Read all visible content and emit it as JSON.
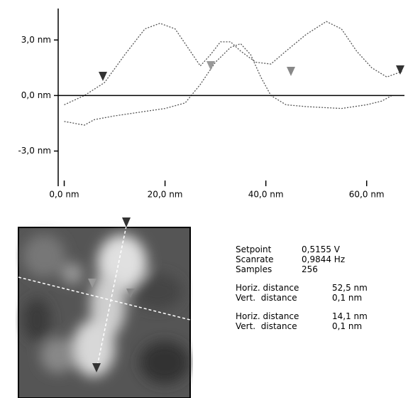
{
  "chart_data": {
    "type": "line",
    "xlim": [
      -1.2,
      67.5
    ],
    "ylim": [
      -4.9,
      4.7
    ],
    "xticks": [
      {
        "value": 0,
        "label": "0,0 nm"
      },
      {
        "value": 20,
        "label": "20,0 nm"
      },
      {
        "value": 40,
        "label": "40,0 nm"
      },
      {
        "value": 60,
        "label": "60,0 nm"
      }
    ],
    "yticks": [
      {
        "value": -3,
        "label": "-3,0 nm"
      },
      {
        "value": 0,
        "label": "0,0 nm"
      },
      {
        "value": 3,
        "label": "3,0 nm"
      }
    ],
    "series": [
      {
        "color": "#555555",
        "x": [
          0,
          4,
          8,
          12,
          16,
          19,
          22,
          25,
          27,
          29,
          31,
          33,
          35,
          38,
          41,
          44,
          48,
          52,
          55,
          58,
          61,
          64,
          67
        ],
        "values": [
          -0.5,
          0,
          0.7,
          2.2,
          3.6,
          3.9,
          3.6,
          2.4,
          1.6,
          2.2,
          2.9,
          2.9,
          2.4,
          1.8,
          1.7,
          2.4,
          3.3,
          4.0,
          3.6,
          2.4,
          1.5,
          1.0,
          1.3
        ]
      },
      {
        "color": "#555555",
        "x": [
          0,
          4,
          6,
          10,
          15,
          20,
          24,
          27,
          30,
          33,
          35,
          37,
          39,
          41,
          44,
          48,
          55,
          60,
          63,
          65
        ],
        "values": [
          -1.4,
          -1.6,
          -1.3,
          -1.1,
          -0.9,
          -0.7,
          -0.4,
          0.6,
          1.8,
          2.6,
          2.8,
          2.2,
          1.0,
          0,
          -0.5,
          -0.6,
          -0.7,
          -0.5,
          -0.3,
          0
        ]
      }
    ]
  },
  "info": {
    "parameters": [
      [
        "Setpoint",
        "0,5155 V"
      ],
      [
        "Scanrate",
        "0,9844 Hz"
      ],
      [
        "Samples",
        "256"
      ]
    ],
    "measurements": [
      [
        [
          "Horiz. distance",
          "52,5 nm"
        ],
        [
          "Vert.  distance",
          "0,1 nm"
        ]
      ],
      [
        [
          "Horiz. distance",
          "14,1 nm"
        ],
        [
          "Vert.  distance",
          "0,1 nm"
        ]
      ]
    ]
  }
}
